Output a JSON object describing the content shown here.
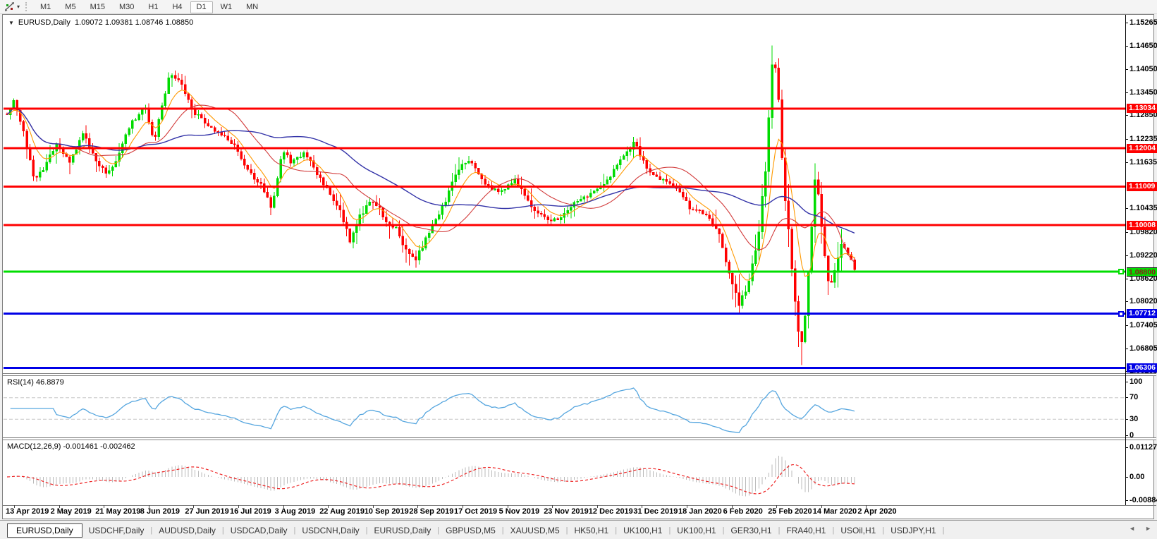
{
  "toolbar": {
    "tool_icon": "line-studies-icon",
    "dropdown_caret": "▾",
    "timeframes": [
      {
        "label": "M1",
        "active": false
      },
      {
        "label": "M5",
        "active": false
      },
      {
        "label": "M15",
        "active": false
      },
      {
        "label": "M30",
        "active": false
      },
      {
        "label": "H1",
        "active": false
      },
      {
        "label": "H4",
        "active": false
      },
      {
        "label": "D1",
        "active": true
      },
      {
        "label": "W1",
        "active": false
      },
      {
        "label": "MN",
        "active": false
      }
    ]
  },
  "chart": {
    "title_symbol": "EURUSD,Daily",
    "title_quotes": "1.09072 1.09381 1.08746 1.08850",
    "rsi_label": "RSI(14) 46.8879",
    "macd_label": "MACD(12,26,9) -0.001461 -0.002462"
  },
  "chart_data": {
    "type": "candlestick",
    "symbol": "EURUSD",
    "timeframe": "Daily",
    "ohlc_display": {
      "open": 1.09072,
      "high": 1.09381,
      "low": 1.08746,
      "close": 1.0885
    },
    "y_axis_ticks": [
      "1.15265",
      "1.14650",
      "1.14050",
      "1.13450",
      "1.12850",
      "1.12235",
      "1.11635",
      "1.10435",
      "1.09820",
      "1.09220",
      "1.08620",
      "1.08020",
      "1.07405",
      "1.06805",
      "1.06205"
    ],
    "y_axis_range": [
      1.06205,
      1.15265
    ],
    "horizontal_levels": [
      {
        "price": 1.13034,
        "label": "1.13034",
        "color": "#FF0000",
        "text_color": "#FFFFFF",
        "marker": false,
        "kind": "resistance"
      },
      {
        "price": 1.12004,
        "label": "1.12004",
        "color": "#FF0000",
        "text_color": "#FFFFFF",
        "marker": false,
        "kind": "resistance"
      },
      {
        "price": 1.11009,
        "label": "1.11009",
        "color": "#FF0000",
        "text_color": "#FFFFFF",
        "marker": false,
        "kind": "resistance"
      },
      {
        "price": 1.10008,
        "label": "1.10008",
        "color": "#FF0000",
        "text_color": "#FFFFFF",
        "marker": false,
        "kind": "resistance"
      },
      {
        "price": 1.088,
        "label": "1.08800",
        "color": "#00DE00",
        "text_color": "#8B1A1A",
        "marker": true,
        "kind": "current-price"
      },
      {
        "price": 1.07712,
        "label": "1.07712",
        "color": "#0000E6",
        "text_color": "#FFFFFF",
        "marker": true,
        "kind": "support"
      },
      {
        "price": 1.06306,
        "label": "1.06306",
        "color": "#0000E6",
        "text_color": "#FFFFFF",
        "marker": false,
        "kind": "support"
      }
    ],
    "date_labels": [
      "13 Apr 2019",
      "2 May 2019",
      "21 May 2019",
      "8 Jun 2019",
      "27 Jun 2019",
      "16 Jul 2019",
      "3 Aug 2019",
      "22 Aug 2019",
      "10 Sep 2019",
      "28 Sep 2019",
      "17 Oct 2019",
      "5 Nov 2019",
      "23 Nov 2019",
      "12 Dec 2019",
      "31 Dec 2019",
      "18 Jan 2020",
      "6 Feb 2020",
      "25 Feb 2020",
      "14 Mar 2020",
      "2 Apr 2020"
    ],
    "num_candles": 258,
    "candle_up_color": "#00DB00",
    "candle_down_color": "#FF0000",
    "price_path_anchors": [
      [
        10,
        1.129
      ],
      [
        20,
        1.1322
      ],
      [
        34,
        1.124
      ],
      [
        48,
        1.112
      ],
      [
        62,
        1.115
      ],
      [
        80,
        1.1212
      ],
      [
        100,
        1.1165
      ],
      [
        118,
        1.1238
      ],
      [
        136,
        1.117
      ],
      [
        152,
        1.1135
      ],
      [
        165,
        1.1168
      ],
      [
        185,
        1.1262
      ],
      [
        205,
        1.131
      ],
      [
        218,
        1.1215
      ],
      [
        232,
        1.133
      ],
      [
        242,
        1.1398
      ],
      [
        256,
        1.1372
      ],
      [
        275,
        1.1292
      ],
      [
        298,
        1.1258
      ],
      [
        318,
        1.1232
      ],
      [
        332,
        1.1212
      ],
      [
        352,
        1.114
      ],
      [
        370,
        1.1108
      ],
      [
        386,
        1.1042
      ],
      [
        400,
        1.1196
      ],
      [
        414,
        1.1162
      ],
      [
        432,
        1.1188
      ],
      [
        448,
        1.1142
      ],
      [
        465,
        1.1092
      ],
      [
        482,
        1.104
      ],
      [
        496,
        1.0962
      ],
      [
        512,
        1.1028
      ],
      [
        530,
        1.1068
      ],
      [
        548,
        1.1015
      ],
      [
        565,
        1.0988
      ],
      [
        578,
        1.0922
      ],
      [
        590,
        1.0912
      ],
      [
        612,
        1.0998
      ],
      [
        632,
        1.1065
      ],
      [
        650,
        1.1148
      ],
      [
        668,
        1.1172
      ],
      [
        690,
        1.1102
      ],
      [
        712,
        1.1088
      ],
      [
        730,
        1.1122
      ],
      [
        752,
        1.1052
      ],
      [
        772,
        1.1018
      ],
      [
        790,
        1.1012
      ],
      [
        812,
        1.1052
      ],
      [
        838,
        1.1082
      ],
      [
        862,
        1.1118
      ],
      [
        882,
        1.1172
      ],
      [
        900,
        1.1218
      ],
      [
        916,
        1.1152
      ],
      [
        936,
        1.1122
      ],
      [
        958,
        1.1098
      ],
      [
        980,
        1.1042
      ],
      [
        1002,
        1.1032
      ],
      [
        1018,
        1.0985
      ],
      [
        1032,
        1.0895
      ],
      [
        1048,
        1.0788
      ],
      [
        1062,
        1.0855
      ],
      [
        1075,
        1.0962
      ],
      [
        1085,
        1.1125
      ],
      [
        1093,
        1.1368
      ],
      [
        1098,
        1.1452
      ],
      [
        1104,
        1.1335
      ],
      [
        1110,
        1.1148
      ],
      [
        1118,
        1.0985
      ],
      [
        1126,
        1.0818
      ],
      [
        1136,
        1.0698
      ],
      [
        1143,
        1.0792
      ],
      [
        1150,
        1.0985
      ],
      [
        1157,
        1.1135
      ],
      [
        1164,
        1.1035
      ],
      [
        1171,
        1.0892
      ],
      [
        1178,
        1.0825
      ],
      [
        1186,
        1.0902
      ],
      [
        1194,
        1.0962
      ],
      [
        1202,
        1.0932
      ],
      [
        1212,
        1.0885
      ]
    ],
    "moving_averages": [
      {
        "name": "fast-ma",
        "method": "ema",
        "period": 8,
        "color": "#FF9900"
      },
      {
        "name": "medium-ma",
        "method": "sma",
        "period": 21,
        "color": "#D23B3B"
      },
      {
        "name": "slow-ma",
        "method": "sma",
        "period": 55,
        "color": "#3333A8"
      }
    ],
    "indicators": [
      {
        "name": "RSI",
        "period": 14,
        "current_value": 46.8879,
        "range": [
          0,
          100
        ],
        "level_lines": [
          70,
          30
        ],
        "ticks": [
          "100",
          "70",
          "30",
          "0"
        ],
        "line_color": "#56A6DF"
      },
      {
        "name": "MACD",
        "params": [
          12,
          26,
          9
        ],
        "current_values": [
          -0.001461,
          -0.002462
        ],
        "ticks": [
          "0.011277",
          "0.00",
          "-0.008845"
        ],
        "axis_range": [
          -0.008845,
          0.011277
        ],
        "histogram_color": "#BBBBBB",
        "signal_color": "#EE2222"
      }
    ]
  },
  "tabs": {
    "items": [
      {
        "label": "EURUSD,Daily",
        "active": true
      },
      {
        "label": "USDCHF,Daily",
        "active": false
      },
      {
        "label": "AUDUSD,Daily",
        "active": false
      },
      {
        "label": "USDCAD,Daily",
        "active": false
      },
      {
        "label": "USDCNH,Daily",
        "active": false
      },
      {
        "label": "EURUSD,Daily",
        "active": false
      },
      {
        "label": "GBPUSD,M5",
        "active": false
      },
      {
        "label": "XAUUSD,M5",
        "active": false
      },
      {
        "label": "HK50,H1",
        "active": false
      },
      {
        "label": "UK100,H1",
        "active": false
      },
      {
        "label": "UK100,H1",
        "active": false
      },
      {
        "label": "GER30,H1",
        "active": false
      },
      {
        "label": "FRA40,H1",
        "active": false
      },
      {
        "label": "USOil,H1",
        "active": false
      },
      {
        "label": "USDJPY,H1",
        "active": false
      }
    ],
    "scroll_left": "◄",
    "scroll_right": "►"
  }
}
